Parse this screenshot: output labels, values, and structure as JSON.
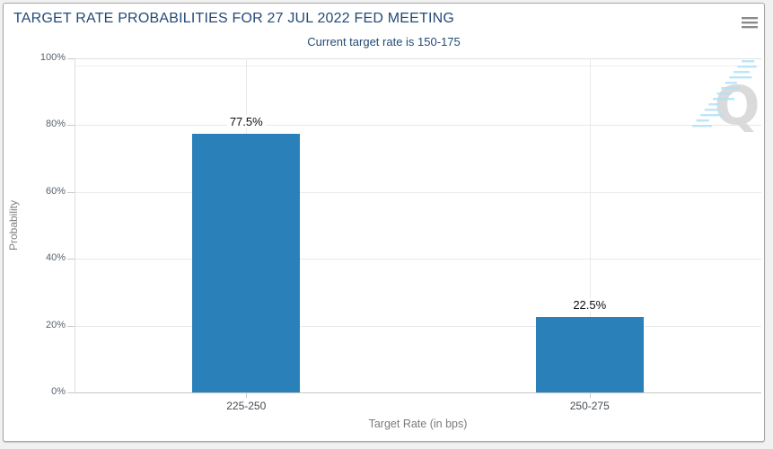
{
  "header": {
    "title": "TARGET RATE PROBABILITIES FOR 27 JUL 2022 FED MEETING",
    "subtitle": "Current target rate is 150-175"
  },
  "chart_data": {
    "type": "bar",
    "title": "TARGET RATE PROBABILITIES FOR 27 JUL 2022 FED MEETING",
    "subtitle": "Current target rate is 150-175",
    "categories": [
      "225-250",
      "250-275"
    ],
    "values": [
      77.5,
      22.5
    ],
    "value_labels": [
      "77.5%",
      "22.5%"
    ],
    "xlabel": "Target Rate (in bps)",
    "ylabel": "Probability",
    "ylim": [
      0,
      100
    ],
    "yticks": [
      0,
      20,
      40,
      60,
      80,
      100
    ],
    "ytick_labels": [
      "0%",
      "20%",
      "40%",
      "60%",
      "80%",
      "100%"
    ],
    "grid": true,
    "legend_position": "none",
    "bar_color": "#2a80b9"
  },
  "colors": {
    "title_text": "#234a77",
    "bar": "#2a80b9"
  },
  "watermark": {
    "letter": "Q"
  },
  "icons": {
    "menu": "hamburger-icon"
  }
}
